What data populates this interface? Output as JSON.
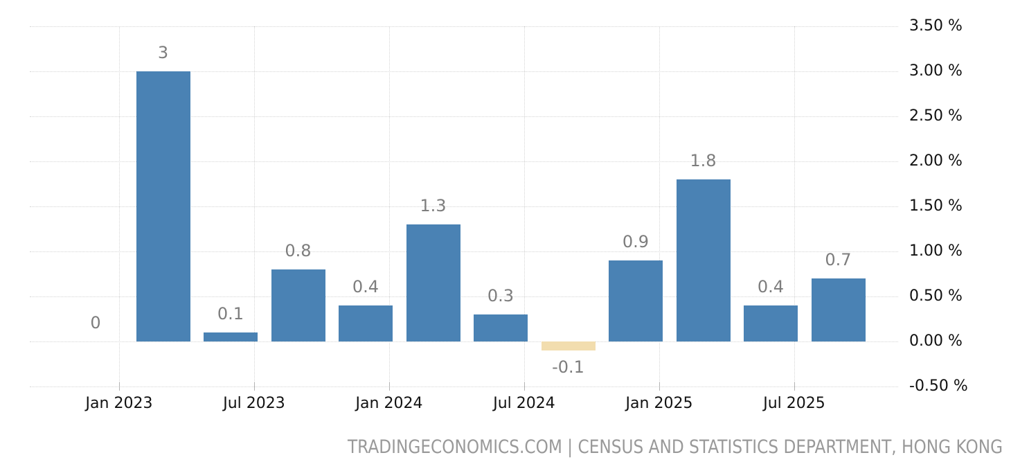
{
  "chart_data": {
    "type": "bar",
    "title": "",
    "unit": "%",
    "values": [
      0,
      3,
      0.1,
      0.8,
      0.4,
      1.3,
      0.3,
      -0.1,
      0.9,
      1.8,
      0.4,
      0.7
    ],
    "bar_value_labels": [
      "0",
      "3",
      "0.1",
      "0.8",
      "0.4",
      "1.3",
      "0.3",
      "-0.1",
      "0.9",
      "1.8",
      "0.4",
      "0.7"
    ],
    "x_tick_labels": [
      "Jan 2023",
      "Jul 2023",
      "Jan 2024",
      "Jul 2024",
      "Jan 2025",
      "Jul 2025"
    ],
    "y_tick_labels": [
      "3.50 %",
      "3.00 %",
      "2.50 %",
      "2.00 %",
      "1.50 %",
      "1.00 %",
      "0.50 %",
      "0.00 %",
      "-0.50 %"
    ],
    "y_tick_values": [
      3.5,
      3.0,
      2.5,
      2.0,
      1.5,
      1.0,
      0.5,
      0.0,
      -0.5
    ],
    "ylim": [
      -0.5,
      3.5
    ],
    "grid": "dotted",
    "legend": "none",
    "colors": {
      "bar_positive": "#4A82B4",
      "bar_negative": "#F2DDAE",
      "gridline": "#D4D4D4",
      "tick": "#B3B3B3",
      "value_label": "#7D7D7D",
      "axis_label": "#111111",
      "footer": "#999999"
    }
  },
  "footer": {
    "text": "TRADINGECONOMICS.COM | CENSUS AND STATISTICS DEPARTMENT, HONG KONG"
  }
}
